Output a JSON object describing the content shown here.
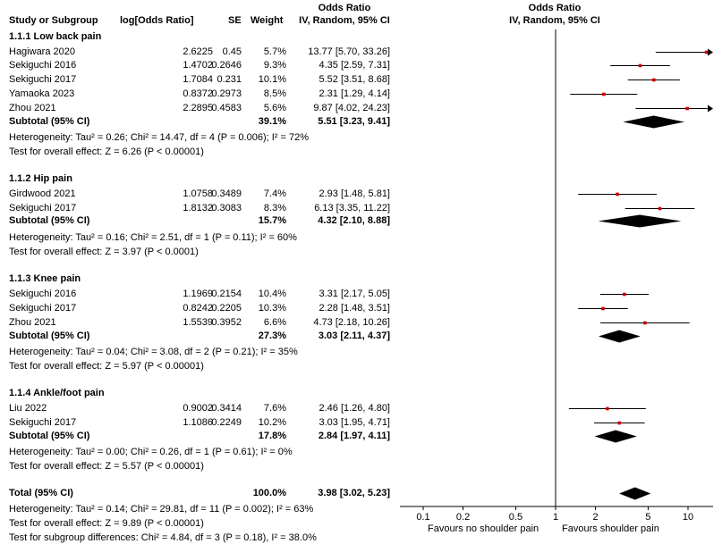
{
  "header": {
    "col_study": "Study or Subgroup",
    "col_log": "log[Odds Ratio]",
    "col_se": "SE",
    "col_weight": "Weight",
    "col_or_line1": "Odds Ratio",
    "col_or_line2": "IV, Random, 95% CI",
    "plot_title_line1": "Odds Ratio",
    "plot_title_line2": "IV, Random, 95% CI"
  },
  "groups": [
    {
      "title": "1.1.1 Low back pain",
      "studies": [
        {
          "name": "Hagiwara 2020",
          "log": "2.6225",
          "se": "0.45",
          "weight": "5.7%",
          "ci": "13.77 [5.70, 33.26]"
        },
        {
          "name": "Sekiguchi 2016",
          "log": "1.4702",
          "se": "0.2646",
          "weight": "9.3%",
          "ci": "4.35 [2.59, 7.31]"
        },
        {
          "name": "Sekiguchi 2017",
          "log": "1.7084",
          "se": "0.231",
          "weight": "10.1%",
          "ci": "5.52 [3.51, 8.68]"
        },
        {
          "name": "Yamaoka 2023",
          "log": "0.8372",
          "se": "0.2973",
          "weight": "8.5%",
          "ci": "2.31 [1.29, 4.14]"
        },
        {
          "name": "Zhou 2021",
          "log": "2.2895",
          "se": "0.4583",
          "weight": "5.6%",
          "ci": "9.87 [4.02, 24.23]"
        }
      ],
      "subtotal": {
        "label": "Subtotal (95% CI)",
        "weight": "39.1%",
        "ci": "5.51 [3.23, 9.41]"
      },
      "heterogeneity": "Heterogeneity: Tau² = 0.26; Chi² = 14.47, df = 4 (P = 0.006); I² = 72%",
      "overall": "Test for overall effect: Z = 6.26 (P < 0.00001)"
    },
    {
      "title": "1.1.2 Hip pain",
      "studies": [
        {
          "name": "Girdwood 2021",
          "log": "1.0758",
          "se": "0.3489",
          "weight": "7.4%",
          "ci": "2.93 [1.48, 5.81]"
        },
        {
          "name": "Sekiguchi 2017",
          "log": "1.8132",
          "se": "0.3083",
          "weight": "8.3%",
          "ci": "6.13 [3.35, 11.22]"
        }
      ],
      "subtotal": {
        "label": "Subtotal (95% CI)",
        "weight": "15.7%",
        "ci": "4.32 [2.10, 8.88]"
      },
      "heterogeneity": "Heterogeneity: Tau² = 0.16; Chi² = 2.51, df = 1 (P = 0.11); I² = 60%",
      "overall": "Test for overall effect: Z = 3.97 (P < 0.0001)"
    },
    {
      "title": "1.1.3 Knee pain",
      "studies": [
        {
          "name": "Sekiguchi 2016",
          "log": "1.1969",
          "se": "0.2154",
          "weight": "10.4%",
          "ci": "3.31 [2.17, 5.05]"
        },
        {
          "name": "Sekiguchi 2017",
          "log": "0.8242",
          "se": "0.2205",
          "weight": "10.3%",
          "ci": "2.28 [1.48, 3.51]"
        },
        {
          "name": "Zhou 2021",
          "log": "1.5539",
          "se": "0.3952",
          "weight": "6.6%",
          "ci": "4.73 [2.18, 10.26]"
        }
      ],
      "subtotal": {
        "label": "Subtotal (95% CI)",
        "weight": "27.3%",
        "ci": "3.03 [2.11, 4.37]"
      },
      "heterogeneity": "Heterogeneity: Tau² = 0.04; Chi² = 3.08, df = 2 (P = 0.21); I² = 35%",
      "overall": "Test for overall effect: Z = 5.97 (P < 0.00001)"
    },
    {
      "title": "1.1.4 Ankle/foot pain",
      "studies": [
        {
          "name": "Liu 2022",
          "log": "0.9002",
          "se": "0.3414",
          "weight": "7.6%",
          "ci": "2.46 [1.26, 4.80]"
        },
        {
          "name": "Sekiguchi 2017",
          "log": "1.1086",
          "se": "0.2249",
          "weight": "10.2%",
          "ci": "3.03 [1.95, 4.71]"
        }
      ],
      "subtotal": {
        "label": "Subtotal (95% CI)",
        "weight": "17.8%",
        "ci": "2.84 [1.97, 4.11]"
      },
      "heterogeneity": "Heterogeneity: Tau² = 0.00; Chi² = 0.26, df = 1 (P = 0.61); I² = 0%",
      "overall": "Test for overall effect: Z = 5.57 (P < 0.00001)"
    }
  ],
  "total": {
    "label": "Total (95% CI)",
    "weight": "100.0%",
    "ci": "3.98 [3.02, 5.23]",
    "heterogeneity": "Heterogeneity: Tau² = 0.14; Chi² = 29.81, df = 11 (P = 0.002); I² = 63%",
    "overall": "Test for overall effect: Z = 9.89 (P < 0.00001)",
    "subgroup_diff": "Test for subgroup differences: Chi² = 4.84, df = 3 (P = 0.18), I² = 38.0%"
  },
  "axis": {
    "ticks": [
      0.1,
      0.2,
      0.5,
      1,
      2,
      5,
      10
    ],
    "tick_labels": [
      "0.1",
      "0.2",
      "0.5",
      "1",
      "2",
      "5",
      "10"
    ],
    "favours_left": "Favours no shoulder pain",
    "favours_right": "Favours shoulder pain"
  },
  "colors": {
    "point": "#cc0000",
    "line": "#000000",
    "diamond": "#000000"
  },
  "chart_data": {
    "type": "forest",
    "title": "Odds Ratio IV, Random, 95% CI",
    "xscale": "log",
    "xlim": [
      0.07,
      14
    ],
    "reference_line": 1,
    "studies": [
      {
        "group": "1.1.1 Low back pain",
        "name": "Hagiwara 2020",
        "or": 13.77,
        "lo": 5.7,
        "hi": 33.26
      },
      {
        "group": "1.1.1 Low back pain",
        "name": "Sekiguchi 2016",
        "or": 4.35,
        "lo": 2.59,
        "hi": 7.31
      },
      {
        "group": "1.1.1 Low back pain",
        "name": "Sekiguchi 2017",
        "or": 5.52,
        "lo": 3.51,
        "hi": 8.68
      },
      {
        "group": "1.1.1 Low back pain",
        "name": "Yamaoka 2023",
        "or": 2.31,
        "lo": 1.29,
        "hi": 4.14
      },
      {
        "group": "1.1.1 Low back pain",
        "name": "Zhou 2021",
        "or": 9.87,
        "lo": 4.02,
        "hi": 24.23
      },
      {
        "group": "1.1.2 Hip pain",
        "name": "Girdwood 2021",
        "or": 2.93,
        "lo": 1.48,
        "hi": 5.81
      },
      {
        "group": "1.1.2 Hip pain",
        "name": "Sekiguchi 2017",
        "or": 6.13,
        "lo": 3.35,
        "hi": 11.22
      },
      {
        "group": "1.1.3 Knee pain",
        "name": "Sekiguchi 2016",
        "or": 3.31,
        "lo": 2.17,
        "hi": 5.05
      },
      {
        "group": "1.1.3 Knee pain",
        "name": "Sekiguchi 2017",
        "or": 2.28,
        "lo": 1.48,
        "hi": 3.51
      },
      {
        "group": "1.1.3 Knee pain",
        "name": "Zhou 2021",
        "or": 4.73,
        "lo": 2.18,
        "hi": 10.26
      },
      {
        "group": "1.1.4 Ankle/foot pain",
        "name": "Liu 2022",
        "or": 2.46,
        "lo": 1.26,
        "hi": 4.8
      },
      {
        "group": "1.1.4 Ankle/foot pain",
        "name": "Sekiguchi 2017",
        "or": 3.03,
        "lo": 1.95,
        "hi": 4.71
      }
    ],
    "subtotals": [
      {
        "group": "1.1.1 Low back pain",
        "or": 5.51,
        "lo": 3.23,
        "hi": 9.41
      },
      {
        "group": "1.1.2 Hip pain",
        "or": 4.32,
        "lo": 2.1,
        "hi": 8.88
      },
      {
        "group": "1.1.3 Knee pain",
        "or": 3.03,
        "lo": 2.11,
        "hi": 4.37
      },
      {
        "group": "1.1.4 Ankle/foot pain",
        "or": 2.84,
        "lo": 1.97,
        "hi": 4.11
      }
    ],
    "total": {
      "or": 3.98,
      "lo": 3.02,
      "hi": 5.23
    }
  }
}
